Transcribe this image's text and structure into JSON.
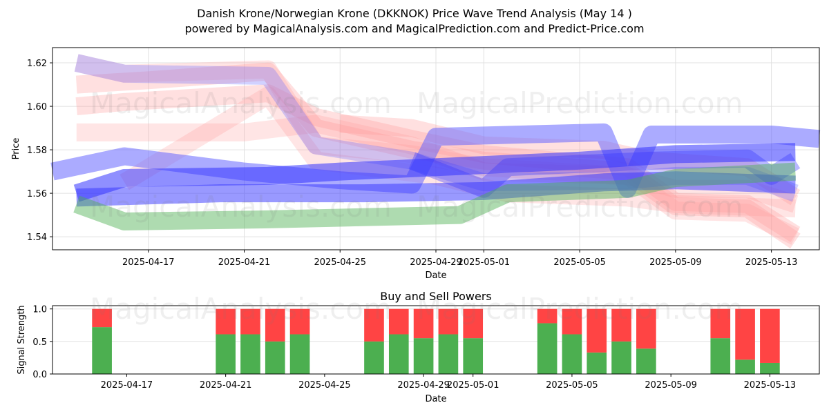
{
  "title_line1": "Danish Krone/Norwegian Krone (DKKNOK) Price Wave Trend Analysis (May 14 )",
  "title_line2": "powered by MagicalAnalysis.com and MagicalPrediction.com and Predict-Price.com",
  "watermarks": [
    "MagicalAnalysis.com",
    "MagicalPrediction.com"
  ],
  "chart_data": [
    {
      "type": "area",
      "title": "",
      "xlabel": "Date",
      "ylabel": "Price",
      "x_range": [
        "2025-04-13",
        "2025-05-15"
      ],
      "ylim": [
        1.534,
        1.627
      ],
      "x_ticks": [
        "2025-04-17",
        "2025-04-21",
        "2025-04-25",
        "2025-04-29",
        "2025-05-01",
        "2025-05-05",
        "2025-05-09",
        "2025-05-13"
      ],
      "y_ticks": [
        1.54,
        1.56,
        1.58,
        1.6,
        1.62
      ],
      "grid": true,
      "series": [
        {
          "color": "#ff9999",
          "opacity": 0.25,
          "points": [
            [
              "2025-04-14",
              1.62
            ],
            [
              "2025-04-16",
              1.615
            ],
            [
              "2025-04-22",
              1.617
            ],
            [
              "2025-04-24",
              1.582
            ],
            [
              "2025-04-28",
              1.578
            ],
            [
              "2025-05-01",
              1.572
            ],
            [
              "2025-05-07",
              1.568
            ],
            [
              "2025-05-09",
              1.552
            ],
            [
              "2025-05-12",
              1.551
            ],
            [
              "2025-05-14",
              1.54
            ]
          ]
        },
        {
          "color": "#ff9999",
          "opacity": 0.3,
          "points": [
            [
              "2025-04-14",
              1.61
            ],
            [
              "2025-04-17",
              1.612
            ],
            [
              "2025-04-22",
              1.616
            ],
            [
              "2025-04-24",
              1.59
            ],
            [
              "2025-04-28",
              1.58
            ],
            [
              "2025-05-01",
              1.575
            ],
            [
              "2025-05-07",
              1.57
            ],
            [
              "2025-05-09",
              1.554
            ],
            [
              "2025-05-12",
              1.553
            ],
            [
              "2025-05-14",
              1.538
            ]
          ]
        },
        {
          "color": "#ff9999",
          "opacity": 0.3,
          "points": [
            [
              "2025-04-14",
              1.6
            ],
            [
              "2025-04-16",
              1.602
            ],
            [
              "2025-04-22",
              1.606
            ],
            [
              "2025-04-24",
              1.595
            ],
            [
              "2025-04-28",
              1.585
            ],
            [
              "2025-05-01",
              1.578
            ],
            [
              "2025-05-07",
              1.572
            ],
            [
              "2025-05-09",
              1.556
            ],
            [
              "2025-05-12",
              1.555
            ],
            [
              "2025-05-14",
              1.541
            ]
          ]
        },
        {
          "color": "#ff9999",
          "opacity": 0.25,
          "points": [
            [
              "2025-04-14",
              1.588
            ],
            [
              "2025-04-19",
              1.588
            ],
            [
              "2025-04-21",
              1.588
            ],
            [
              "2025-04-24",
              1.592
            ],
            [
              "2025-04-28",
              1.582
            ],
            [
              "2025-05-01",
              1.57
            ],
            [
              "2025-05-07",
              1.568
            ],
            [
              "2025-05-09",
              1.562
            ],
            [
              "2025-05-12",
              1.562
            ],
            [
              "2025-05-14",
              1.555
            ]
          ]
        },
        {
          "color": "#ff9999",
          "opacity": 0.25,
          "points": [
            [
              "2025-04-16",
              1.565
            ],
            [
              "2025-04-22",
              1.605
            ],
            [
              "2025-04-24",
              1.575
            ],
            [
              "2025-04-29",
              1.568
            ],
            [
              "2025-05-02",
              1.56
            ],
            [
              "2025-05-07",
              1.558
            ],
            [
              "2025-05-09",
              1.555
            ],
            [
              "2025-05-14",
              1.553
            ]
          ]
        },
        {
          "color": "#ff9999",
          "opacity": 0.3,
          "points": [
            [
              "2025-04-25",
              1.592
            ],
            [
              "2025-04-28",
              1.59
            ],
            [
              "2025-05-01",
              1.582
            ],
            [
              "2025-05-06",
              1.58
            ],
            [
              "2025-05-08",
              1.575
            ],
            [
              "2025-05-12",
              1.572
            ],
            [
              "2025-05-14",
              1.558
            ]
          ]
        },
        {
          "color": "#6666ff",
          "opacity": 0.3,
          "points": [
            [
              "2025-04-14",
              1.62
            ],
            [
              "2025-04-16",
              1.615
            ],
            [
              "2025-04-22",
              1.614
            ],
            [
              "2025-04-24",
              1.582
            ],
            [
              "2025-04-28",
              1.575
            ],
            [
              "2025-05-01",
              1.565
            ],
            [
              "2025-05-07",
              1.566
            ],
            [
              "2025-05-09",
              1.568
            ],
            [
              "2025-05-12",
              1.568
            ],
            [
              "2025-05-14",
              1.56
            ]
          ]
        },
        {
          "color": "#6666ff",
          "opacity": 0.55,
          "points": [
            [
              "2025-04-13",
              1.57
            ],
            [
              "2025-04-16",
              1.577
            ],
            [
              "2025-04-21",
              1.57
            ],
            [
              "2025-04-25",
              1.566
            ],
            [
              "2025-04-28",
              1.564
            ],
            [
              "2025-04-29",
              1.586
            ],
            [
              "2025-05-06",
              1.588
            ],
            [
              "2025-05-07",
              1.562
            ],
            [
              "2025-05-08",
              1.587
            ],
            [
              "2025-05-13",
              1.587
            ],
            [
              "2025-05-15",
              1.585
            ]
          ]
        },
        {
          "color": "#3333ff",
          "opacity": 0.55,
          "points": [
            [
              "2025-04-14",
              1.56
            ],
            [
              "2025-04-16",
              1.567
            ],
            [
              "2025-04-22",
              1.568
            ],
            [
              "2025-04-25",
              1.57
            ],
            [
              "2025-04-29",
              1.572
            ],
            [
              "2025-05-05",
              1.575
            ],
            [
              "2025-05-09",
              1.578
            ],
            [
              "2025-05-14",
              1.579
            ]
          ]
        },
        {
          "color": "#3333ff",
          "opacity": 0.5,
          "points": [
            [
              "2025-04-14",
              1.558
            ],
            [
              "2025-04-20",
              1.56
            ],
            [
              "2025-04-26",
              1.56
            ],
            [
              "2025-05-01",
              1.561
            ],
            [
              "2025-05-06",
              1.565
            ],
            [
              "2025-05-09",
              1.566
            ],
            [
              "2025-05-14",
              1.564
            ]
          ]
        },
        {
          "color": "#3333ff",
          "opacity": 0.35,
          "points": [
            [
              "2025-04-28",
              1.575
            ],
            [
              "2025-05-01",
              1.562
            ],
            [
              "2025-05-02",
              1.572
            ],
            [
              "2025-05-06",
              1.574
            ],
            [
              "2025-05-08",
              1.575
            ],
            [
              "2025-05-12",
              1.576
            ],
            [
              "2025-05-13",
              1.568
            ],
            [
              "2025-05-14",
              1.575
            ]
          ]
        },
        {
          "color": "#4caf50",
          "opacity": 0.45,
          "points": [
            [
              "2025-04-14",
              1.555
            ],
            [
              "2025-04-16",
              1.547
            ],
            [
              "2025-04-22",
              1.548
            ],
            [
              "2025-04-30",
              1.55
            ],
            [
              "2025-05-02",
              1.56
            ],
            [
              "2025-05-07",
              1.562
            ],
            [
              "2025-05-09",
              1.567
            ],
            [
              "2025-05-14",
              1.57
            ]
          ]
        }
      ]
    },
    {
      "type": "bar",
      "title": "Buy and Sell Powers",
      "xlabel": "Date",
      "ylabel": "Signal Strength",
      "ylim": [
        0,
        1.05
      ],
      "y_ticks": [
        0.0,
        0.5,
        1.0
      ],
      "x_ticks": [
        "2025-04-17",
        "2025-04-21",
        "2025-04-25",
        "2025-04-29",
        "2025-05-01",
        "2025-05-05",
        "2025-05-09",
        "2025-05-13"
      ],
      "grid": true,
      "colors": {
        "buy": "#4caf50",
        "sell": "#ff4444"
      },
      "categories": [
        "2025-04-16",
        "2025-04-21",
        "2025-04-22",
        "2025-04-23",
        "2025-04-24",
        "2025-04-27",
        "2025-04-28",
        "2025-04-29",
        "2025-04-30",
        "2025-05-01",
        "2025-05-04",
        "2025-05-05",
        "2025-05-06",
        "2025-05-07",
        "2025-05-08",
        "2025-05-11",
        "2025-05-12",
        "2025-05-13"
      ],
      "series": [
        {
          "name": "Buy",
          "values": [
            0.72,
            0.61,
            0.61,
            0.5,
            0.61,
            0.5,
            0.61,
            0.55,
            0.61,
            0.55,
            0.78,
            0.61,
            0.33,
            0.5,
            0.39,
            0.55,
            0.22,
            0.17
          ]
        },
        {
          "name": "Sell",
          "values": [
            0.28,
            0.39,
            0.39,
            0.5,
            0.39,
            0.5,
            0.39,
            0.45,
            0.39,
            0.45,
            0.22,
            0.39,
            0.67,
            0.5,
            0.61,
            0.45,
            0.78,
            0.83
          ]
        }
      ]
    }
  ]
}
